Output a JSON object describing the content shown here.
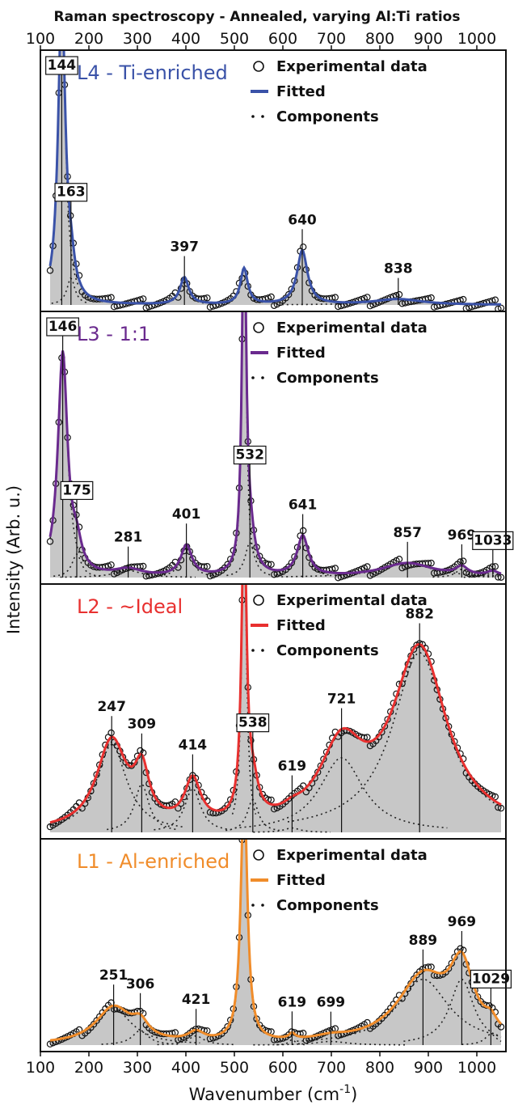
{
  "chart_data": {
    "type": "line",
    "title": "Raman spectroscopy  - Annealed, varying Al:Ti ratios",
    "xlabel": "Wavenumber (cm",
    "xlabel_sup": "-1",
    "ylabel": "Intensity (Arb. u.)",
    "xlim": [
      100,
      1060
    ],
    "xticks": [
      "100",
      "200",
      "300",
      "400",
      "500",
      "600",
      "700",
      "800",
      "900",
      "1000"
    ],
    "legend_entries": [
      "Experimental data",
      "Fitted",
      "Components"
    ],
    "panels": [
      {
        "name": "L4 - Ti-enriched",
        "color": "#3a52a8",
        "ymax": 1.0,
        "peaks": [
          {
            "pos": 144,
            "amp": 1.35,
            "w": 9,
            "label": "144",
            "boxed": true
          },
          {
            "pos": 163,
            "amp": 0.12,
            "w": 10,
            "label": "163",
            "boxed": true
          },
          {
            "pos": 397,
            "amp": 0.12,
            "w": 11,
            "label": "397",
            "boxed": false
          },
          {
            "pos": 520,
            "amp": 0.16,
            "w": 9,
            "label": "",
            "boxed": false
          },
          {
            "pos": 640,
            "amp": 0.24,
            "w": 13,
            "label": "640",
            "boxed": false
          },
          {
            "pos": 838,
            "amp": 0.025,
            "w": 60,
            "label": "838",
            "boxed": false
          }
        ]
      },
      {
        "name": "L3 - 1:1",
        "color": "#6a2a8e",
        "ymax": 1.0,
        "peaks": [
          {
            "pos": 146,
            "amp": 0.95,
            "w": 12,
            "label": "146",
            "boxed": true
          },
          {
            "pos": 175,
            "amp": 0.1,
            "w": 12,
            "label": "175",
            "boxed": true
          },
          {
            "pos": 281,
            "amp": 0.03,
            "w": 35,
            "label": "281",
            "boxed": false
          },
          {
            "pos": 401,
            "amp": 0.13,
            "w": 14,
            "label": "401",
            "boxed": false
          },
          {
            "pos": 520,
            "amp": 1.6,
            "w": 5,
            "label": "",
            "boxed": false
          },
          {
            "pos": 532,
            "amp": 0.15,
            "w": 12,
            "label": "532",
            "boxed": true
          },
          {
            "pos": 641,
            "amp": 0.17,
            "w": 14,
            "label": "641",
            "boxed": false
          },
          {
            "pos": 857,
            "amp": 0.06,
            "w": 65,
            "label": "857",
            "boxed": false
          },
          {
            "pos": 969,
            "amp": 0.035,
            "w": 15,
            "label": "969",
            "boxed": false
          },
          {
            "pos": 1033,
            "amp": 0.02,
            "w": 15,
            "label": "1033",
            "boxed": true
          }
        ]
      },
      {
        "name": "L2 - ~Ideal",
        "color": "#e8302f",
        "ymax": 1.0,
        "peaks": [
          {
            "pos": 247,
            "amp": 0.4,
            "w": 38,
            "label": "247",
            "boxed": false
          },
          {
            "pos": 309,
            "amp": 0.22,
            "w": 18,
            "label": "309",
            "boxed": false
          },
          {
            "pos": 414,
            "amp": 0.2,
            "w": 20,
            "label": "414",
            "boxed": false
          },
          {
            "pos": 520,
            "amp": 1.4,
            "w": 6,
            "label": "",
            "boxed": false
          },
          {
            "pos": 538,
            "amp": 0.15,
            "w": 14,
            "label": "538",
            "boxed": true
          },
          {
            "pos": 619,
            "amp": 0.02,
            "w": 20,
            "label": "619",
            "boxed": false
          },
          {
            "pos": 721,
            "amp": 0.34,
            "w": 55,
            "label": "721",
            "boxed": false
          },
          {
            "pos": 882,
            "amp": 0.82,
            "w": 68,
            "label": "882",
            "boxed": false
          }
        ]
      },
      {
        "name": "L1 - Al-enriched",
        "color": "#f08c2a",
        "ymax": 1.0,
        "peaks": [
          {
            "pos": 251,
            "amp": 0.2,
            "w": 45,
            "label": "251",
            "boxed": false
          },
          {
            "pos": 306,
            "amp": 0.08,
            "w": 20,
            "label": "306",
            "boxed": false
          },
          {
            "pos": 421,
            "amp": 0.05,
            "w": 20,
            "label": "421",
            "boxed": false
          },
          {
            "pos": 520,
            "amp": 1.4,
            "w": 8,
            "label": "",
            "boxed": false
          },
          {
            "pos": 619,
            "amp": 0.03,
            "w": 8,
            "label": "619",
            "boxed": false
          },
          {
            "pos": 699,
            "amp": 0.02,
            "w": 40,
            "label": "699",
            "boxed": false
          },
          {
            "pos": 889,
            "amp": 0.36,
            "w": 65,
            "label": "889",
            "boxed": false
          },
          {
            "pos": 969,
            "amp": 0.36,
            "w": 30,
            "label": "969",
            "boxed": false
          },
          {
            "pos": 1029,
            "amp": 0.06,
            "w": 15,
            "label": "1029",
            "boxed": true
          }
        ]
      }
    ]
  }
}
